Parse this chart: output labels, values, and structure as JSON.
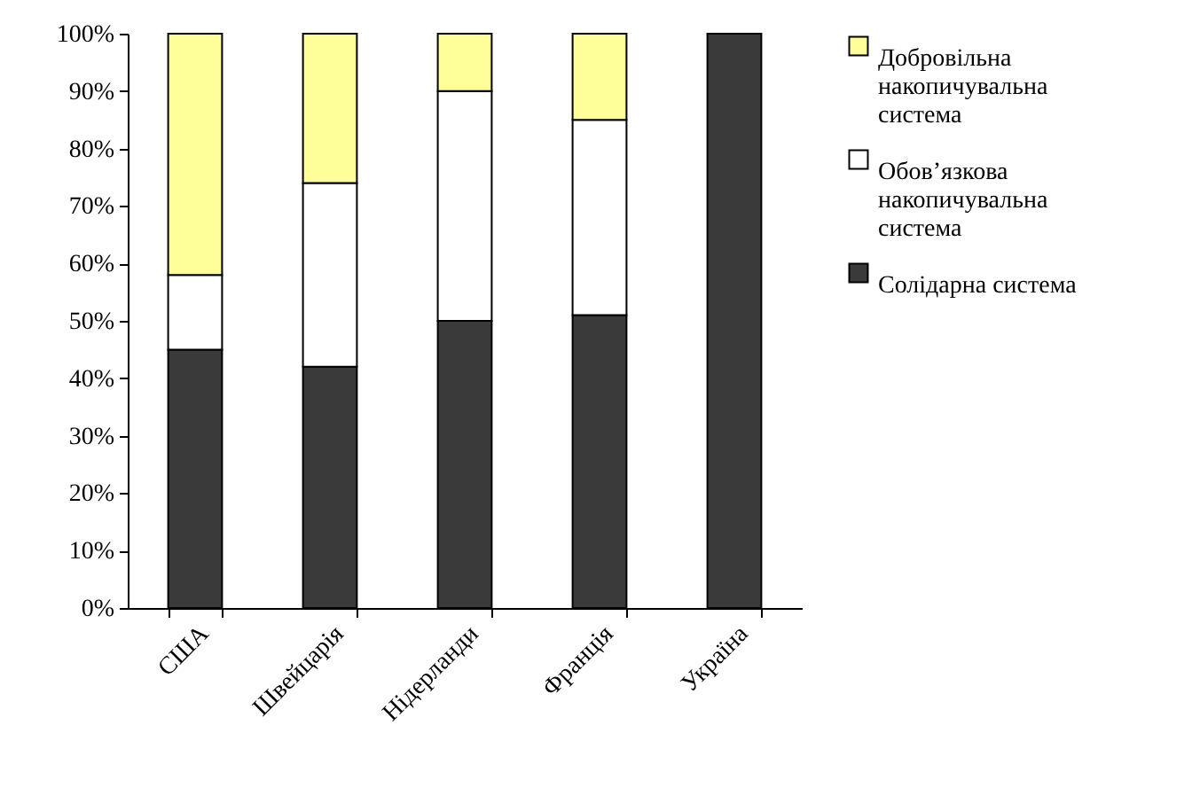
{
  "chart_data": {
    "type": "bar",
    "stacked": true,
    "categories": [
      "США",
      "Швейцарія",
      "Нідерланди",
      "Франція",
      "Україна"
    ],
    "series": [
      {
        "name": "Солідарна система",
        "color": "#3a3a3a",
        "values": [
          45,
          42,
          50,
          51,
          100
        ]
      },
      {
        "name": "Обов’язкова накопичувальна система",
        "color": "#ffffff",
        "values": [
          13,
          32,
          40,
          34,
          0
        ]
      },
      {
        "name": "Добровільна накопичувальна система",
        "color": "#ffff99",
        "values": [
          42,
          26,
          10,
          15,
          0
        ]
      }
    ],
    "ylim": [
      0,
      100
    ],
    "yticks": [
      {
        "value": 0,
        "label": "0%"
      },
      {
        "value": 10,
        "label": "10%"
      },
      {
        "value": 20,
        "label": "20%"
      },
      {
        "value": 30,
        "label": "30%"
      },
      {
        "value": 40,
        "label": "40%"
      },
      {
        "value": 50,
        "label": "50%"
      },
      {
        "value": 60,
        "label": "60%"
      },
      {
        "value": 70,
        "label": "70%"
      },
      {
        "value": 80,
        "label": "80%"
      },
      {
        "value": 90,
        "label": "90%"
      },
      {
        "value": 100,
        "label": "100%"
      }
    ],
    "grid": false,
    "legend": "right"
  }
}
